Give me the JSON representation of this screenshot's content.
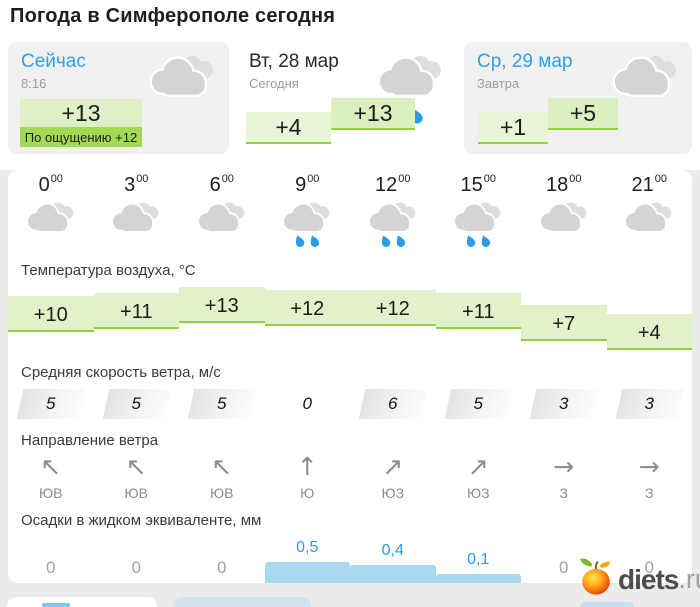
{
  "title": "Погода в Симферополе сегодня",
  "cards": {
    "now": {
      "title": "Сейчас",
      "time": "8:16",
      "temp": "+13",
      "feels_like": "По ощущению +12",
      "icon": "cloudy"
    },
    "today": {
      "title": "Вт, 28 мар",
      "subtitle": "Сегодня",
      "temp_morning": "+4",
      "temp_day": "+13",
      "icon": "cloudy-rain"
    },
    "tomorrow": {
      "title": "Ср, 29 мар",
      "subtitle": "Завтра",
      "temp_morning": "+1",
      "temp_day": "+5",
      "icon": "cloudy"
    }
  },
  "sections": {
    "temperature_label": "Температура воздуха, °C",
    "wind_speed_label": "Средняя скорость ветра, м/с",
    "wind_direction_label": "Направление ветра",
    "precipitation_label": "Осадки в жидком эквиваленте, мм"
  },
  "hour_superscript": "00",
  "columns": [
    {
      "hour": "0",
      "icon": "cloudy",
      "temp_label": "+10",
      "temp": 10,
      "wind_speed": "5",
      "dir_arrow": "↖",
      "dir_label": "ЮВ",
      "precip_label": "0",
      "precip": 0
    },
    {
      "hour": "3",
      "icon": "cloudy",
      "temp_label": "+11",
      "temp": 11,
      "wind_speed": "5",
      "dir_arrow": "↖",
      "dir_label": "ЮВ",
      "precip_label": "0",
      "precip": 0
    },
    {
      "hour": "6",
      "icon": "cloudy",
      "temp_label": "+13",
      "temp": 13,
      "wind_speed": "5",
      "dir_arrow": "↖",
      "dir_label": "ЮВ",
      "precip_label": "0",
      "precip": 0
    },
    {
      "hour": "9",
      "icon": "rain",
      "temp_label": "+12",
      "temp": 12,
      "wind_speed": "0",
      "dir_arrow": "↑",
      "dir_label": "Ю",
      "precip_label": "0,5",
      "precip": 0.5
    },
    {
      "hour": "12",
      "icon": "rain",
      "temp_label": "+12",
      "temp": 12,
      "wind_speed": "6",
      "dir_arrow": "↗",
      "dir_label": "ЮЗ",
      "precip_label": "0,4",
      "precip": 0.4
    },
    {
      "hour": "15",
      "icon": "rain",
      "temp_label": "+11",
      "temp": 11,
      "wind_speed": "5",
      "dir_arrow": "↗",
      "dir_label": "ЮЗ",
      "precip_label": "0,1",
      "precip": 0.1
    },
    {
      "hour": "18",
      "icon": "cloudy",
      "temp_label": "+7",
      "temp": 7,
      "wind_speed": "3",
      "dir_arrow": "→",
      "dir_label": "З",
      "precip_label": "0",
      "precip": 0
    },
    {
      "hour": "21",
      "icon": "cloudy",
      "temp_label": "+4",
      "temp": 4,
      "wind_speed": "3",
      "dir_arrow": "→",
      "dir_label": "З",
      "precip_label": "0",
      "precip": 0
    }
  ],
  "watermark": {
    "name": "diets",
    "tld": ".ru"
  },
  "colors": {
    "accent_blue": "#2f9fe8",
    "green_fill": "#e3f1cb",
    "green_line": "#90d23a",
    "feels_green": "#a3da52",
    "bar_blue": "#a9d6f1",
    "cloud_gray": "#d4d4d4",
    "page_bg": "#ebebeb"
  }
}
